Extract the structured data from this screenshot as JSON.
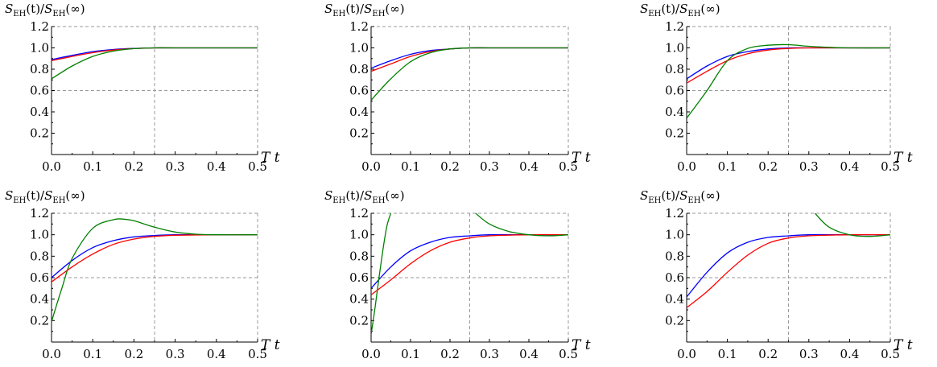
{
  "chart_data": [
    {
      "type": "line",
      "ylabel_base": "S",
      "ylabel_sub": "EH",
      "ylabel_arg_num": "(t)/",
      "ylabel_arg_den": "(∞)",
      "xlabel": "T t",
      "xlim": [
        0,
        0.5
      ],
      "ylim": [
        0,
        1.2
      ],
      "xticks": [
        "0.0",
        "0.1",
        "0.2",
        "0.3",
        "0.4",
        "0.5"
      ],
      "yticks": [
        "0.2",
        "0.4",
        "0.6",
        "0.8",
        "1.0",
        "1.2"
      ],
      "grid": {
        "x": [
          0.25
        ],
        "y": [
          0.6,
          1.2
        ]
      },
      "series": [
        {
          "color": "#0000ff",
          "x": [
            0,
            0.05,
            0.1,
            0.15,
            0.2,
            0.25,
            0.3,
            0.4,
            0.5
          ],
          "y": [
            0.89,
            0.93,
            0.965,
            0.985,
            0.995,
            1.0,
            1.0,
            1.0,
            1.0
          ]
        },
        {
          "color": "#ff0000",
          "x": [
            0,
            0.05,
            0.1,
            0.15,
            0.2,
            0.25,
            0.3,
            0.4,
            0.5
          ],
          "y": [
            0.88,
            0.92,
            0.955,
            0.98,
            0.993,
            1.0,
            1.0,
            1.0,
            1.0
          ]
        },
        {
          "color": "#008000",
          "x": [
            0,
            0.05,
            0.1,
            0.15,
            0.2,
            0.25,
            0.3,
            0.4,
            0.5
          ],
          "y": [
            0.71,
            0.83,
            0.92,
            0.97,
            0.993,
            1.0,
            1.0,
            1.0,
            1.0
          ]
        }
      ]
    },
    {
      "type": "line",
      "ylabel_base": "S",
      "ylabel_sub": "EH",
      "ylabel_arg_num": "(t)/",
      "ylabel_arg_den": "(∞)",
      "xlabel": "T t",
      "xlim": [
        0,
        0.5
      ],
      "ylim": [
        0,
        1.2
      ],
      "xticks": [
        "0.0",
        "0.1",
        "0.2",
        "0.3",
        "0.4",
        "0.5"
      ],
      "yticks": [
        "0.2",
        "0.4",
        "0.6",
        "0.8",
        "1.0",
        "1.2"
      ],
      "grid": {
        "x": [
          0.25
        ],
        "y": [
          0.6,
          1.2
        ]
      },
      "series": [
        {
          "color": "#0000ff",
          "x": [
            0,
            0.05,
            0.1,
            0.15,
            0.2,
            0.25,
            0.3,
            0.4,
            0.5
          ],
          "y": [
            0.81,
            0.88,
            0.94,
            0.975,
            0.99,
            1.0,
            1.0,
            1.0,
            1.0
          ]
        },
        {
          "color": "#ff0000",
          "x": [
            0,
            0.05,
            0.1,
            0.15,
            0.2,
            0.25,
            0.3,
            0.4,
            0.5
          ],
          "y": [
            0.78,
            0.85,
            0.92,
            0.965,
            0.99,
            1.0,
            1.0,
            1.0,
            1.0
          ]
        },
        {
          "color": "#008000",
          "x": [
            0,
            0.05,
            0.1,
            0.15,
            0.2,
            0.25,
            0.3,
            0.4,
            0.5
          ],
          "y": [
            0.51,
            0.71,
            0.87,
            0.955,
            0.99,
            1.0,
            1.0,
            1.0,
            1.0
          ]
        }
      ]
    },
    {
      "type": "line",
      "ylabel_base": "S",
      "ylabel_sub": "EH",
      "ylabel_arg_num": "(t)/",
      "ylabel_arg_den": "(∞)",
      "xlabel": "T t",
      "xlim": [
        0,
        0.5
      ],
      "ylim": [
        0,
        1.2
      ],
      "xticks": [
        "0.0",
        "0.1",
        "0.2",
        "0.3",
        "0.4",
        "0.5"
      ],
      "yticks": [
        "0.2",
        "0.4",
        "0.6",
        "0.8",
        "1.0",
        "1.2"
      ],
      "grid": {
        "x": [
          0.25
        ],
        "y": [
          0.6,
          1.2
        ]
      },
      "series": [
        {
          "color": "#0000ff",
          "x": [
            0,
            0.05,
            0.1,
            0.15,
            0.2,
            0.25,
            0.3,
            0.4,
            0.5
          ],
          "y": [
            0.71,
            0.83,
            0.92,
            0.965,
            0.99,
            1.0,
            1.0,
            1.0,
            1.0
          ]
        },
        {
          "color": "#ff0000",
          "x": [
            0,
            0.05,
            0.1,
            0.15,
            0.2,
            0.25,
            0.3,
            0.4,
            0.5
          ],
          "y": [
            0.67,
            0.78,
            0.88,
            0.945,
            0.98,
            0.995,
            1.0,
            1.0,
            1.0
          ]
        },
        {
          "color": "#008000",
          "x": [
            0,
            0.05,
            0.1,
            0.15,
            0.2,
            0.25,
            0.3,
            0.35,
            0.4,
            0.5
          ],
          "y": [
            0.34,
            0.6,
            0.88,
            0.995,
            1.025,
            1.03,
            1.015,
            1.005,
            1.0,
            1.0
          ]
        }
      ]
    },
    {
      "type": "line",
      "ylabel_base": "S",
      "ylabel_sub": "EH",
      "ylabel_arg_num": "(t)/",
      "ylabel_arg_den": "(∞)",
      "xlabel": "T t",
      "xlim": [
        0,
        0.5
      ],
      "ylim": [
        0,
        1.2
      ],
      "xticks": [
        "0.0",
        "0.1",
        "0.2",
        "0.3",
        "0.4",
        "0.5"
      ],
      "yticks": [
        "0.2",
        "0.4",
        "0.6",
        "0.8",
        "1.0",
        "1.2"
      ],
      "grid": {
        "x": [
          0.25
        ],
        "y": [
          0.6,
          1.2
        ]
      },
      "series": [
        {
          "color": "#0000ff",
          "x": [
            0,
            0.05,
            0.1,
            0.15,
            0.2,
            0.25,
            0.3,
            0.4,
            0.5
          ],
          "y": [
            0.6,
            0.76,
            0.88,
            0.945,
            0.98,
            0.993,
            1.0,
            1.0,
            1.0
          ]
        },
        {
          "color": "#ff0000",
          "x": [
            0,
            0.05,
            0.1,
            0.15,
            0.2,
            0.25,
            0.3,
            0.4,
            0.5
          ],
          "y": [
            0.56,
            0.7,
            0.82,
            0.91,
            0.96,
            0.985,
            0.995,
            1.0,
            1.0
          ]
        },
        {
          "color": "#008000",
          "x": [
            0,
            0.025,
            0.05,
            0.1,
            0.15,
            0.175,
            0.2,
            0.25,
            0.3,
            0.35,
            0.4,
            0.5
          ],
          "y": [
            0.19,
            0.5,
            0.78,
            1.06,
            1.14,
            1.145,
            1.13,
            1.07,
            1.025,
            1.005,
            1.0,
            1.0
          ]
        }
      ]
    },
    {
      "type": "line",
      "ylabel_base": "S",
      "ylabel_sub": "EH",
      "ylabel_arg_num": "(t)/",
      "ylabel_arg_den": "(∞)",
      "xlabel": "T t",
      "xlim": [
        0,
        0.5
      ],
      "ylim": [
        0,
        1.2
      ],
      "xticks": [
        "0.0",
        "0.1",
        "0.2",
        "0.3",
        "0.4",
        "0.5"
      ],
      "yticks": [
        "0.2",
        "0.4",
        "0.6",
        "0.8",
        "1.0",
        "1.2"
      ],
      "grid": {
        "x": [
          0.25
        ],
        "y": [
          0.6,
          1.2
        ]
      },
      "series": [
        {
          "color": "#0000ff",
          "x": [
            0,
            0.05,
            0.1,
            0.15,
            0.2,
            0.25,
            0.3,
            0.4,
            0.5
          ],
          "y": [
            0.5,
            0.7,
            0.85,
            0.93,
            0.975,
            0.99,
            1.0,
            1.0,
            1.0
          ]
        },
        {
          "color": "#ff0000",
          "x": [
            0,
            0.05,
            0.1,
            0.15,
            0.2,
            0.25,
            0.3,
            0.4,
            0.5
          ],
          "y": [
            0.44,
            0.58,
            0.73,
            0.85,
            0.93,
            0.97,
            0.99,
            1.0,
            1.0
          ]
        },
        {
          "color": "#008000",
          "x": [
            0,
            0.01,
            0.02,
            0.03,
            0.04,
            0.05
          ],
          "y": [
            0.07,
            0.32,
            0.6,
            0.86,
            1.08,
            1.2
          ]
        },
        {
          "color": "#008000",
          "x": [
            0.265,
            0.3,
            0.35,
            0.4,
            0.45,
            0.5
          ],
          "y": [
            1.2,
            1.1,
            1.03,
            1.0,
            0.99,
            1.0
          ]
        }
      ]
    },
    {
      "type": "line",
      "ylabel_base": "S",
      "ylabel_sub": "EH",
      "ylabel_arg_num": "(t)/",
      "ylabel_arg_den": "(∞)",
      "xlabel": "T t",
      "xlim": [
        0,
        0.5
      ],
      "ylim": [
        0,
        1.2
      ],
      "xticks": [
        "0.0",
        "0.1",
        "0.2",
        "0.3",
        "0.4",
        "0.5"
      ],
      "yticks": [
        "0.2",
        "0.4",
        "0.6",
        "0.8",
        "1.0",
        "1.2"
      ],
      "grid": {
        "x": [
          0.25
        ],
        "y": [
          0.6,
          1.2
        ]
      },
      "series": [
        {
          "color": "#0000ff",
          "x": [
            0,
            0.05,
            0.1,
            0.15,
            0.2,
            0.25,
            0.3,
            0.4,
            0.5
          ],
          "y": [
            0.42,
            0.65,
            0.83,
            0.93,
            0.975,
            0.99,
            1.0,
            1.0,
            1.0
          ]
        },
        {
          "color": "#ff0000",
          "x": [
            0,
            0.05,
            0.1,
            0.15,
            0.2,
            0.25,
            0.3,
            0.4,
            0.5
          ],
          "y": [
            0.32,
            0.47,
            0.65,
            0.81,
            0.92,
            0.97,
            0.99,
            1.0,
            1.0
          ]
        },
        {
          "color": "#008000",
          "x": [
            0.315,
            0.35,
            0.4,
            0.45,
            0.5
          ],
          "y": [
            1.2,
            1.07,
            1.0,
            0.985,
            1.0
          ]
        }
      ]
    }
  ]
}
